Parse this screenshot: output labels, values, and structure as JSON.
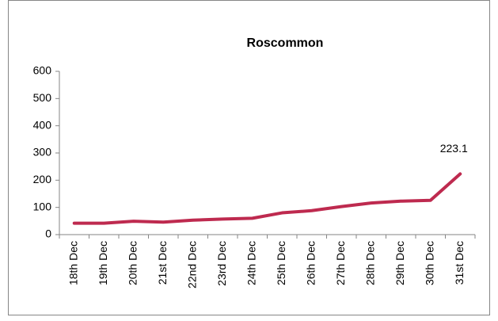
{
  "chart_data": {
    "type": "line",
    "title": "Roscommon",
    "categories": [
      "18th Dec",
      "19th Dec",
      "20th Dec",
      "21st Dec",
      "22nd Dec",
      "23rd Dec",
      "24th Dec",
      "25th Dec",
      "26th Dec",
      "27th Dec",
      "28th Dec",
      "29th Dec",
      "30th Dec",
      "31st Dec"
    ],
    "values": [
      42,
      42,
      49,
      46,
      53,
      57,
      60,
      80,
      88,
      103,
      116,
      123,
      126,
      223.1
    ],
    "color": "#be2a4f",
    "ylim": [
      0,
      600
    ],
    "yticks": [
      0,
      100,
      200,
      300,
      400,
      500,
      600
    ],
    "grid": false,
    "data_labels": [
      13
    ]
  }
}
